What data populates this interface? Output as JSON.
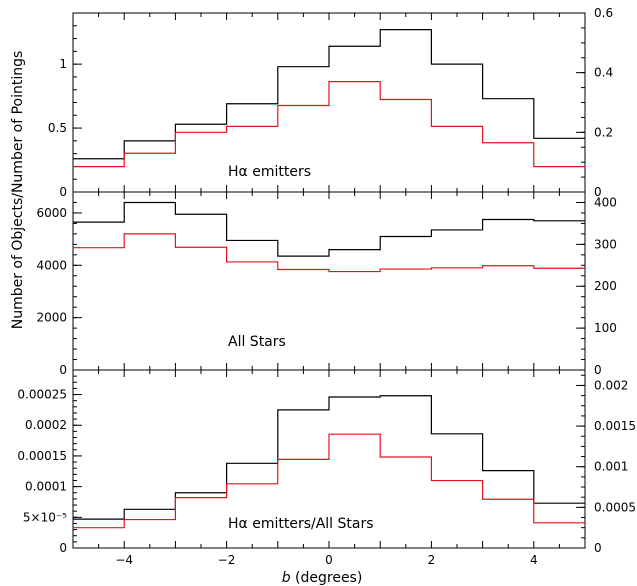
{
  "chart_data": [
    {
      "type": "step",
      "panel_label": "Hα emitters",
      "left_ylim": [
        0,
        1.4
      ],
      "right_ylim": [
        0,
        0.6
      ],
      "left_yticks": [
        0,
        0.5,
        1
      ],
      "left_yticklabels": [
        "0",
        "0.5",
        "1"
      ],
      "right_yticks": [
        0,
        0.2,
        0.4,
        0.6
      ],
      "right_yticklabels": [
        "0",
        "0.2",
        "0.4",
        "0.6"
      ],
      "series": [
        {
          "color": "#000000",
          "axis": "left",
          "values": [
            0.26,
            0.4,
            0.53,
            0.69,
            0.98,
            1.14,
            1.27,
            1.0,
            0.73,
            0.42
          ]
        },
        {
          "color": "#e0141e",
          "axis": "right",
          "values": [
            0.085,
            0.13,
            0.2,
            0.22,
            0.29,
            0.37,
            0.31,
            0.22,
            0.165,
            0.085
          ]
        }
      ]
    },
    {
      "type": "step",
      "panel_label": "All Stars",
      "left_ylim": [
        0,
        6800
      ],
      "right_ylim": [
        0,
        425
      ],
      "left_yticks": [
        0,
        2000,
        4000,
        6000
      ],
      "left_yticklabels": [
        "0",
        "2000",
        "4000",
        "6000"
      ],
      "right_yticks": [
        0,
        100,
        200,
        300,
        400
      ],
      "right_yticklabels": [
        "0",
        "100",
        "200",
        "300",
        "400"
      ],
      "series": [
        {
          "color": "#000000",
          "axis": "left",
          "values": [
            5650,
            6400,
            5950,
            4950,
            4350,
            4600,
            5100,
            5350,
            5750,
            5700
          ]
        },
        {
          "color": "#e0141e",
          "axis": "right",
          "values": [
            292,
            325,
            293,
            258,
            240,
            235,
            241,
            244,
            249,
            243
          ]
        }
      ]
    },
    {
      "type": "step",
      "panel_label": "Hα emitters/All Stars",
      "xlabel_prefix": "b",
      "xlabel_suffix": " (degrees)",
      "xlim": [
        -5,
        5
      ],
      "xticks": [
        -4,
        -2,
        0,
        2,
        4
      ],
      "xticklabels": [
        "−4",
        "−2",
        "0",
        "2",
        "4"
      ],
      "left_ylim": [
        0,
        0.00029
      ],
      "right_ylim": [
        0,
        0.00219
      ],
      "left_yticks": [
        0,
        5e-05,
        0.0001,
        0.00015,
        0.0002,
        0.00025
      ],
      "left_yticklabels": [
        "0",
        "5×10⁻⁵",
        "0.0001",
        "0.00015",
        "0.0002",
        "0.00025"
      ],
      "right_yticks": [
        0,
        0.0005,
        0.001,
        0.0015,
        0.002
      ],
      "right_yticklabels": [
        "0",
        "0.0005",
        "0.001",
        "0.0015",
        "0.002"
      ],
      "series": [
        {
          "color": "#000000",
          "axis": "left",
          "values": [
            4.7e-05,
            6.3e-05,
            9e-05,
            0.000138,
            0.000225,
            0.000246,
            0.000248,
            0.000186,
            0.000126,
            7.3e-05
          ]
        },
        {
          "color": "#e0141e",
          "axis": "right",
          "values": [
            0.00025,
            0.00035,
            0.00062,
            0.00079,
            0.00109,
            0.0014,
            0.00112,
            0.00083,
            0.0006,
            0.00031
          ]
        }
      ]
    }
  ],
  "shared_ylabel": "Number of Objects/Number of Pointings",
  "bins": [
    -5,
    -4,
    -3,
    -2,
    -1,
    0,
    1,
    2,
    3,
    4,
    5
  ]
}
